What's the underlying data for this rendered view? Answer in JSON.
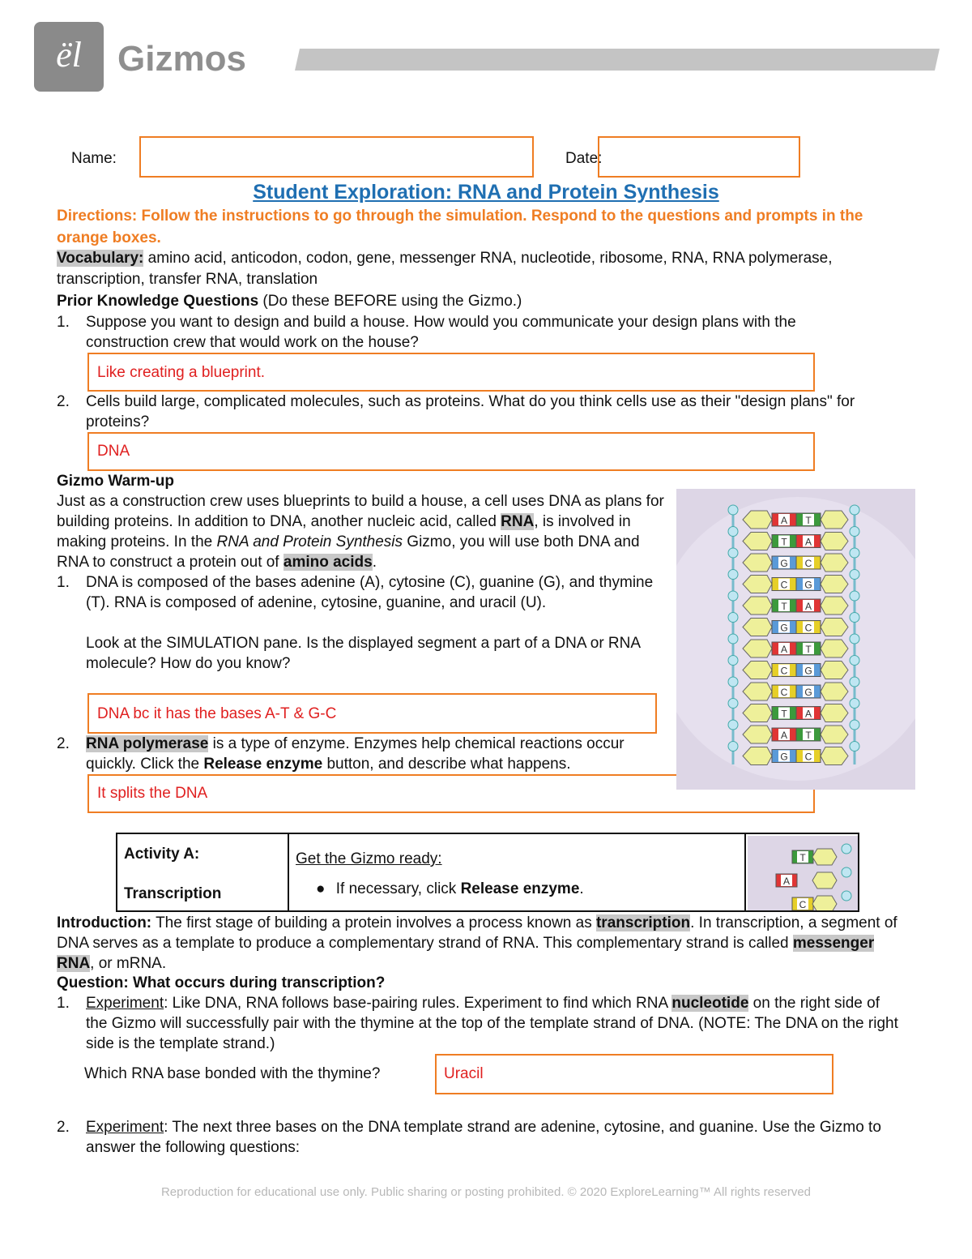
{
  "header": {
    "logo_mark": "ël",
    "logo_text": "Gizmos"
  },
  "form": {
    "name_label": "Name:",
    "date_label": "Date:"
  },
  "title": "Student Exploration: RNA and Protein Synthesis",
  "directions": "Directions: Follow the instructions to go through the simulation. Respond to the questions and prompts in the orange boxes.",
  "vocabulary": {
    "label": "Vocabulary:",
    "text": " amino acid, anticodon, codon, gene, messenger RNA, nucleotide, ribosome, RNA, RNA polymerase, transcription, transfer RNA, translation"
  },
  "prior_knowledge": {
    "heading": "Prior Knowledge Questions",
    "note": " (Do these BEFORE using the Gizmo.)",
    "questions": [
      {
        "number": "1.",
        "text": "Suppose you want to design and build a house. How would you communicate your design plans with the construction crew that would work on the house?",
        "answer": "Like creating a blueprint."
      },
      {
        "number": "2.",
        "text": "Cells build large, complicated molecules, such as proteins. What do you think cells use as their \"design plans\" for proteins?",
        "answer": "DNA"
      }
    ]
  },
  "warmup": {
    "heading": "Gizmo Warm-up",
    "paragraph": [
      "Just as a construction crew uses blueprints to build a house, a cell uses DNA as plans for building proteins. In addition to DNA, another nucleic acid, called ",
      "RNA",
      ", is involved in making proteins. In the ",
      "RNA and Protein Synthesis",
      " Gizmo, you will use both DNA and RNA to construct a protein out of ",
      "amino acids",
      "."
    ],
    "questions": [
      {
        "number": "1.",
        "text": "DNA is composed of the bases adenine (A), cytosine (C), guanine (G), and thymine (T). RNA is composed of adenine, cytosine, guanine, and uracil (U).",
        "text2": "Look at the SIMULATION pane. Is the displayed segment a part of a DNA or RNA molecule? How do you know?",
        "answer": "DNA bc it has the bases A-T & G-C"
      },
      {
        "number": "2.",
        "parts": [
          "RNA polymerase",
          " is a type of enzyme. Enzymes help chemical reactions occur quickly. Click the ",
          "Release enzyme",
          " button, and describe what happens."
        ],
        "answer": "It splits the DNA"
      }
    ]
  },
  "simulation": {
    "pairs": [
      [
        "A",
        "T"
      ],
      [
        "T",
        "A"
      ],
      [
        "G",
        "C"
      ],
      [
        "C",
        "G"
      ],
      [
        "T",
        "A"
      ],
      [
        "G",
        "C"
      ],
      [
        "A",
        "T"
      ],
      [
        "C",
        "G"
      ],
      [
        "C",
        "G"
      ],
      [
        "T",
        "A"
      ],
      [
        "A",
        "T"
      ],
      [
        "G",
        "C"
      ]
    ]
  },
  "activity": {
    "label": "Activity A:",
    "name": "Transcription",
    "setup": "Get the Gizmo ready:",
    "bullet": [
      "If necessary, click ",
      "Release enzyme",
      "."
    ],
    "image_bases": [
      "T",
      "A",
      "C"
    ]
  },
  "introduction": [
    "Introduction:",
    " The first stage of building a protein involves a process known as ",
    "transcription",
    ". In transcription, a segment of DNA serves as a template to produce a complementary strand of RNA. This complementary strand is called ",
    "messenger RNA",
    ", or mRNA."
  ],
  "question": {
    "heading": "Question: What occurs during transcription?",
    "items": [
      {
        "number": "1.",
        "parts": [
          "Experiment",
          ": Like DNA, RNA follows base-pairing rules. Experiment to find which RNA ",
          "nucleotide",
          " on the right side of the Gizmo will successfully pair with the thymine at the top of the template strand of DNA. (NOTE: The DNA on the right side is the template strand.)"
        ],
        "prompt": "Which RNA base bonded with the thymine?",
        "answer": "Uracil"
      },
      {
        "number": "2.",
        "parts": [
          "Experiment",
          ": The next three bases on the DNA template strand are adenine, cytosine, and guanine. Use the Gizmo to answer the following questions:"
        ]
      }
    ]
  },
  "footer": "Reproduction for educational use only. Public sharing or posting prohibited. © 2020 ExploreLearning™ All rights reserved"
}
